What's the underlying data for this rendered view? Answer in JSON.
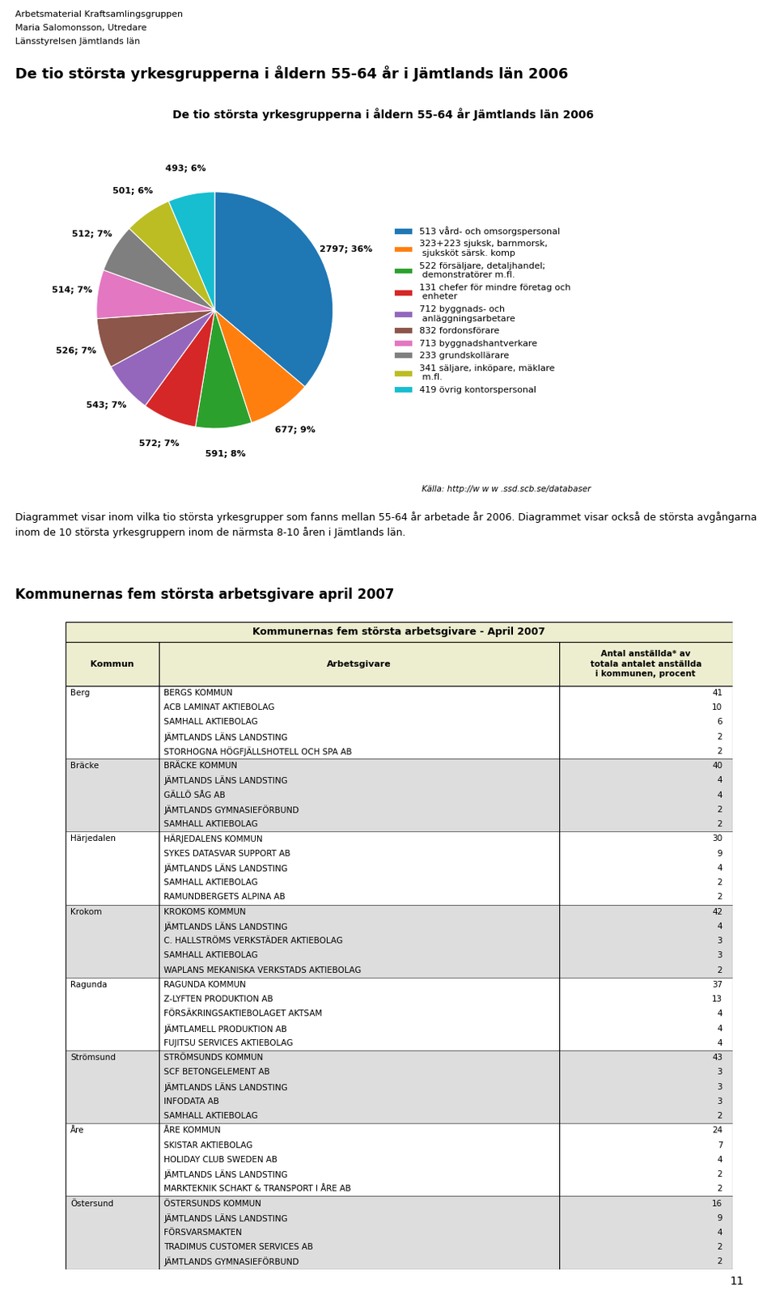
{
  "chart_data": {
    "type": "pie",
    "title": "De tio största yrkesgrupperna i åldern 55-64 år Jämtlands län 2006",
    "categories": [
      "513 vård- och omsorgspersonal",
      "323+223 sjuksk, barnmorsk,\n sjuksköt särsk. komp",
      "522 försäljare, detaljhandel;\n demonstratörer m.fl.",
      "131 chefer för mindre företag och\n enheter",
      "712 byggnads- och\n anläggningsarbetare",
      "832 fordonsförare",
      "713 byggnadshantverkare",
      "233 grundskollärare",
      "341 säljare, inköpare, mäklare\n m.fl.",
      "419 övrig kontorspersonal"
    ],
    "values": [
      2797,
      677,
      591,
      572,
      543,
      526,
      514,
      512,
      501,
      493
    ],
    "value_labels": [
      "2797; 36%",
      "677; 9%",
      "591; 8%",
      "572; 7%",
      "543; 7%",
      "526; 7%",
      "514; 7%",
      "512; 7%",
      "501; 6%",
      "493; 6%"
    ],
    "data_labels": true,
    "legend": "center left",
    "source": "Källa: http://w w w .ssd.scb.se/databaser"
  },
  "page": {
    "header_lines": [
      "Arbetsmaterial Kraftsamlingsgruppen",
      "Maria Salomonsson, Utredare",
      "Länsstyrelsen Jämtlands län"
    ],
    "title": "De tio största yrkesgrupperna i åldern 55-64 år i Jämtlands län 2006",
    "paragraph": "Diagrammet visar inom vilka tio största yrkesgrupper som fanns mellan 55-64 år arbetade år 2006. Diagrammet visar också de största avgångarna inom de 10 största yrkesgruppern inom de närmsta 8-10 åren i Jämtlands län.",
    "section_title": "Kommunernas fem största arbetsgivare april 2007",
    "page_number": 11
  },
  "table": {
    "title": "Kommunernas fem största arbetsgivare - April 2007",
    "columns": [
      "Kommun",
      "Arbetsgivare",
      "Antal anställda* av\ntotala antalet anställda\ni kommunen, procent"
    ],
    "rows": [
      [
        "Berg",
        "BERGS KOMMUN",
        41
      ],
      [
        null,
        "ACB LAMINAT AKTIEBOLAG",
        10
      ],
      [
        null,
        "SAMHALL AKTIEBOLAG",
        6
      ],
      [
        null,
        "JÄMTLANDS LÄNS LANDSTING",
        2
      ],
      [
        null,
        "STORHOGNA HÖGFJÄLLSHOTELL OCH SPA AB",
        2
      ],
      [
        "Bräcke",
        "BRÄCKE KOMMUN",
        40
      ],
      [
        null,
        "JÄMTLANDS LÄNS LANDSTING",
        4
      ],
      [
        null,
        "GÄLLÖ SÅG AB",
        4
      ],
      [
        null,
        "JÄMTLANDS GYMNASIEFÖRBUND",
        2
      ],
      [
        null,
        "SAMHALL AKTIEBOLAG",
        2
      ],
      [
        "Härjedalen",
        "HÄRJEDALENS KOMMUN",
        30
      ],
      [
        null,
        "SYKES DATASVAR SUPPORT AB",
        9
      ],
      [
        null,
        "JÄMTLANDS LÄNS LANDSTING",
        4
      ],
      [
        null,
        "SAMHALL AKTIEBOLAG",
        2
      ],
      [
        null,
        "RAMUNDBERGETS ALPINA AB",
        2
      ],
      [
        "Krokom",
        "KROKOMS KOMMUN",
        42
      ],
      [
        null,
        "JÄMTLANDS LÄNS LANDSTING",
        4
      ],
      [
        null,
        "C. HALLSTRÖMS VERKSTÄDER AKTIEBOLAG",
        3
      ],
      [
        null,
        "SAMHALL AKTIEBOLAG",
        3
      ],
      [
        null,
        "WAPLANS MEKANISKA VERKSTADS AKTIEBOLAG",
        2
      ],
      [
        "Ragunda",
        "RAGUNDA KOMMUN",
        37
      ],
      [
        null,
        "Z-LYFTEN PRODUKTION AB",
        13
      ],
      [
        null,
        "FÖRSÄKRINGSAKTIEBOLAGET AKTSAM",
        4
      ],
      [
        null,
        "JÄMTLAMELL PRODUKTION AB",
        4
      ],
      [
        null,
        "FUJITSU SERVICES AKTIEBOLAG",
        4
      ],
      [
        "Strömsund",
        "STRÖMSUNDS KOMMUN",
        43
      ],
      [
        null,
        "SCF BETONGELEMENT AB",
        3
      ],
      [
        null,
        "JÄMTLANDS LÄNS LANDSTING",
        3
      ],
      [
        null,
        "INFODATA AB",
        3
      ],
      [
        null,
        "SAMHALL AKTIEBOLAG",
        2
      ],
      [
        "Åre",
        "ÅRE KOMMUN",
        24
      ],
      [
        null,
        "SKISTAR AKTIEBOLAG",
        7
      ],
      [
        null,
        "HOLIDAY CLUB SWEDEN AB",
        4
      ],
      [
        null,
        "JÄMTLANDS LÄNS LANDSTING",
        2
      ],
      [
        null,
        "MARKTEKNIK SCHAKT & TRANSPORT I ÅRE AB",
        2
      ],
      [
        "Östersund",
        "ÖSTERSUNDS KOMMUN",
        16
      ],
      [
        null,
        "JÄMTLANDS LÄNS LANDSTING",
        9
      ],
      [
        null,
        "FÖRSVARSMAKTEN",
        4
      ],
      [
        null,
        "TRADIMUS CUSTOMER SERVICES AB",
        2
      ],
      [
        null,
        "JÄMTLANDS GYMNASIEFÖRBUND",
        2
      ]
    ]
  }
}
